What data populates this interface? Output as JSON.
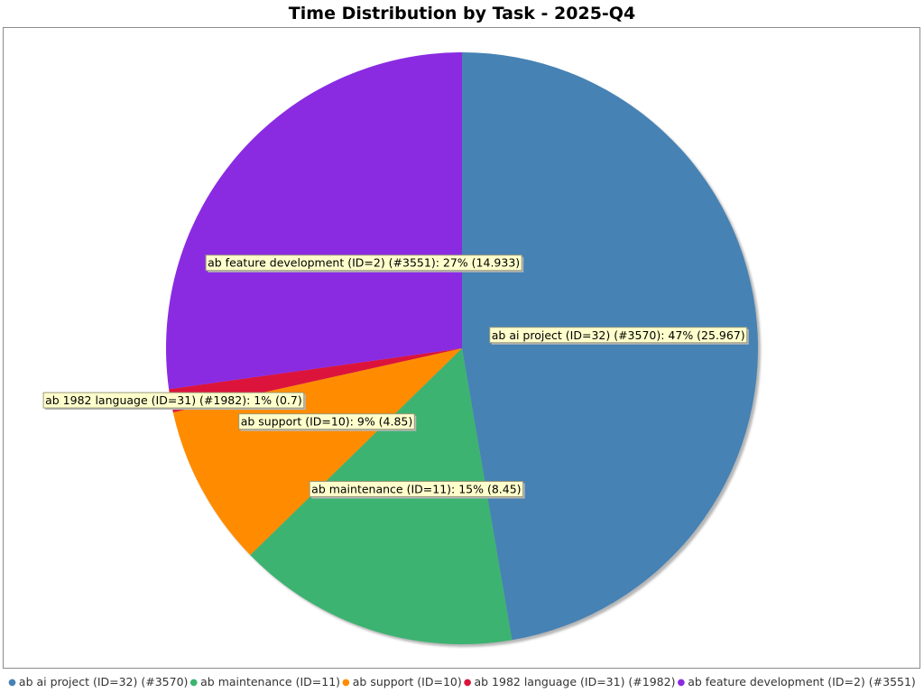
{
  "chart_data": {
    "type": "pie",
    "title": "Time Distribution by Task - 2025-Q4",
    "legend_position": "bottom",
    "start_angle": "top, clockwise",
    "slices": [
      {
        "name": "ab ai project  (ID=32) (#3570)",
        "value": 25.967,
        "percent": 47,
        "color": "#4682B4",
        "label": "ab ai project  (ID=32) (#3570): 47% (25.967)"
      },
      {
        "name": "ab maintenance  (ID=11)",
        "value": 8.45,
        "percent": 15,
        "color": "#3CB371",
        "label": "ab maintenance  (ID=11): 15% (8.45)"
      },
      {
        "name": "ab support (ID=10)",
        "value": 4.85,
        "percent": 9,
        "color": "#FF8C00",
        "label": "ab support (ID=10): 9% (4.85)"
      },
      {
        "name": "ab 1982 language  (ID=31) (#1982)",
        "value": 0.7,
        "percent": 1,
        "color": "#DC143C",
        "label": "ab 1982 language  (ID=31) (#1982): 1% (0.7)"
      },
      {
        "name": "ab feature development (ID=2) (#3551)",
        "value": 14.933,
        "percent": 27,
        "color": "#8A2BE2",
        "label": "ab feature development (ID=2) (#3551): 27% (14.933)"
      }
    ]
  }
}
